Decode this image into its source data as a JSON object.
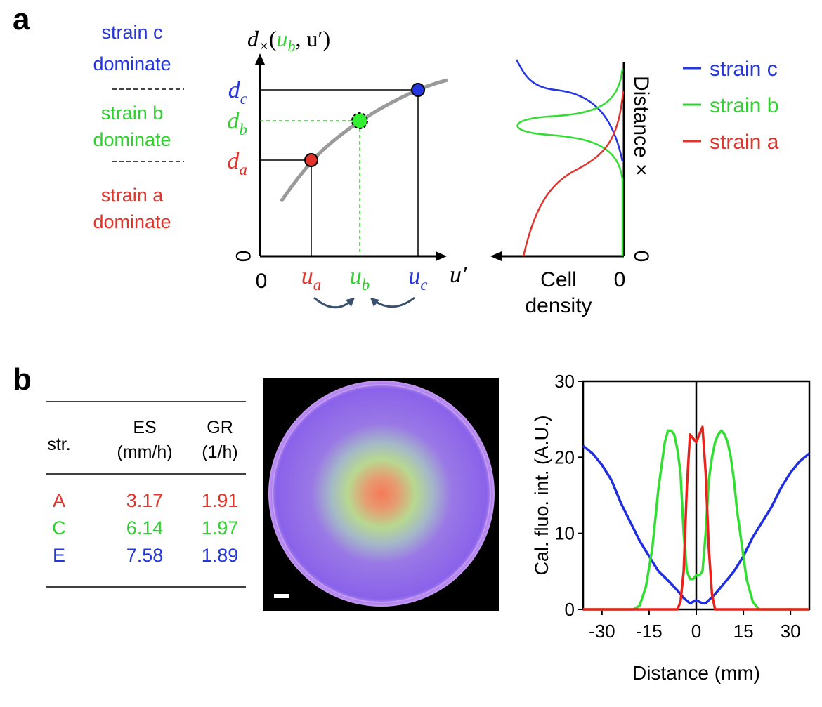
{
  "panel_a": {
    "label": "a",
    "regions": [
      {
        "lines": [
          "strain c",
          "dominate"
        ],
        "color": "#2436e0"
      },
      {
        "lines": [
          "strain b",
          "dominate"
        ],
        "color": "#2fd02f"
      },
      {
        "lines": [
          "strain a",
          "dominate"
        ],
        "color": "#e2342b"
      }
    ],
    "y_axis_label": [
      {
        "text": "d"
      },
      {
        "text": "×",
        "sub": true
      },
      {
        "text": "("
      },
      {
        "text": "u",
        "color": "#2fd02f"
      },
      {
        "text": "b",
        "sub": true,
        "color": "#2fd02f"
      },
      {
        "text": ", u′)"
      }
    ],
    "y_ticks": [
      {
        "main": "d",
        "sub": "c",
        "color": "#2436e0"
      },
      {
        "main": "d",
        "sub": "b",
        "color": "#2fd02f"
      },
      {
        "main": "d",
        "sub": "a",
        "color": "#e2342b"
      }
    ],
    "y_zero": "0",
    "x_zero": "0",
    "x_ticks": [
      {
        "main": "u",
        "sub": "a",
        "color": "#e2342b"
      },
      {
        "main": "u",
        "sub": "b",
        "color": "#2fd02f"
      },
      {
        "main": "u",
        "sub": "c",
        "color": "#2436e0"
      }
    ],
    "x_axis_label": "u′",
    "density_axis_label": "Distance ×",
    "density_axis_zero": "0",
    "density_x_label": [
      "Cell",
      "density"
    ],
    "density_x_zero": "0",
    "legend": [
      {
        "name": "strain c",
        "color": "#2436e0"
      },
      {
        "name": "strain b",
        "color": "#2fd02f"
      },
      {
        "name": "strain a",
        "color": "#e2342b"
      }
    ]
  },
  "panel_b": {
    "label": "b",
    "table": {
      "header": [
        [
          "str."
        ],
        [
          "ES",
          "(mm/h)"
        ],
        [
          "GR",
          "(1/h)"
        ]
      ],
      "rows": [
        [
          "A",
          "3.17",
          "1.91"
        ],
        [
          "C",
          "6.14",
          "1.97"
        ],
        [
          "E",
          "7.58",
          "1.89"
        ]
      ],
      "row_colors": [
        "#e2342b",
        "#2fd02f",
        "#2436e0"
      ]
    }
  },
  "chart_data": {
    "type": "line",
    "xlabel": "Distance (mm)",
    "ylabel": "Cal. fluo. int. (A.U.)",
    "xlim": [
      -36,
      36
    ],
    "ylim": [
      0,
      30
    ],
    "xticks": [
      -30,
      -15,
      0,
      15,
      30
    ],
    "yticks": [
      0,
      10,
      20,
      30
    ],
    "series": [
      {
        "color": "#1f2ee0",
        "x": [
          -36,
          -33,
          -30,
          -27,
          -24,
          -21,
          -18,
          -15,
          -12,
          -9,
          -6,
          -4,
          -2,
          -1,
          0,
          1,
          2,
          3,
          4,
          6,
          9,
          12,
          15,
          18,
          21,
          24,
          27,
          30,
          33,
          36
        ],
        "values": [
          21.5,
          20.5,
          19,
          17,
          14,
          11.5,
          9,
          7,
          5,
          3.8,
          2.5,
          1.5,
          0.8,
          1,
          1.2,
          1,
          0.8,
          0.8,
          1.2,
          2,
          3.5,
          5,
          7,
          9.5,
          11.5,
          13.5,
          16,
          18,
          19.5,
          20.5
        ]
      },
      {
        "color": "#33dd33",
        "x": [
          -36,
          -20,
          -18,
          -16,
          -14,
          -13,
          -12,
          -11,
          -10,
          -9,
          -8,
          -7,
          -6,
          -5,
          -4,
          -3,
          -2,
          -1,
          0,
          1,
          2,
          3,
          4,
          5,
          6,
          7,
          8,
          9,
          10,
          11,
          12,
          13,
          14,
          16,
          18,
          20,
          36
        ],
        "values": [
          0,
          0,
          0.5,
          3,
          8,
          12,
          16,
          19,
          22,
          23.5,
          23.5,
          23,
          21,
          18,
          10,
          5,
          4,
          4,
          4.5,
          4.5,
          5,
          10,
          17,
          20,
          22,
          23,
          23.5,
          23,
          22,
          20,
          17,
          13,
          10,
          4,
          1,
          0,
          0
        ]
      },
      {
        "color": "#e8231c",
        "x": [
          -36,
          -6,
          -5,
          -4,
          -3,
          -2,
          -1,
          0,
          1,
          2,
          3,
          4,
          5,
          6,
          36
        ],
        "values": [
          0,
          0,
          1,
          5,
          16,
          23,
          22.5,
          22,
          23,
          24,
          18,
          8,
          2,
          0,
          0
        ]
      }
    ]
  }
}
